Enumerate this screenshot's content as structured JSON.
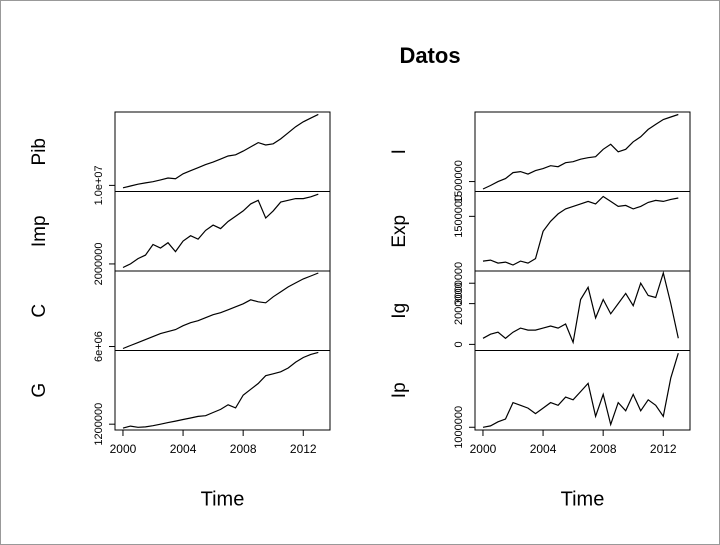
{
  "chart_data": {
    "type": "line",
    "title": "Datos",
    "x_label": "Time",
    "x": [
      2000,
      2000.5,
      2001,
      2001.5,
      2002,
      2002.5,
      2003,
      2003.5,
      2004,
      2004.5,
      2005,
      2005.5,
      2006,
      2006.5,
      2007,
      2007.5,
      2008,
      2008.5,
      2009,
      2009.5,
      2010,
      2010.5,
      2011,
      2011.5,
      2012,
      2012.5,
      2013
    ],
    "xlim": [
      1999.47,
      2013.78
    ],
    "xticks": [
      2000,
      2004,
      2008,
      2012
    ],
    "series": [
      {
        "name": "Pib",
        "color": "#000000",
        "ylim": [
          9000000,
          22000000
        ],
        "yticks": [
          {
            "value": 10000000,
            "label": "1.0e+07"
          }
        ],
        "values": [
          9600000,
          9900000,
          10200000,
          10400000,
          10600000,
          10900000,
          11200000,
          11100000,
          11900000,
          12400000,
          12900000,
          13400000,
          13800000,
          14300000,
          14800000,
          15000000,
          15600000,
          16300000,
          17000000,
          16600000,
          16800000,
          17600000,
          18600000,
          19600000,
          20400000,
          21000000,
          21600000
        ]
      },
      {
        "name": "Imp",
        "color": "#000000",
        "ylim": [
          1600000,
          6100000
        ],
        "yticks": [
          2000000
        ],
        "values": [
          1800000,
          2000000,
          2300000,
          2500000,
          3100000,
          2900000,
          3200000,
          2700000,
          3300000,
          3600000,
          3400000,
          3900000,
          4200000,
          4000000,
          4400000,
          4700000,
          5000000,
          5400000,
          5600000,
          4600000,
          5000000,
          5500000,
          5600000,
          5700000,
          5700000,
          5800000,
          5950000
        ]
      },
      {
        "name": "C",
        "color": "#000000",
        "ylim": [
          5600000,
          13600000
        ],
        "yticks": [
          {
            "value": 6000000,
            "label": "6e+06"
          }
        ],
        "values": [
          5800000,
          6100000,
          6400000,
          6700000,
          7000000,
          7300000,
          7500000,
          7700000,
          8100000,
          8400000,
          8600000,
          8900000,
          9200000,
          9400000,
          9700000,
          10000000,
          10300000,
          10700000,
          10500000,
          10400000,
          11000000,
          11500000,
          12000000,
          12400000,
          12800000,
          13100000,
          13400000
        ]
      },
      {
        "name": "G",
        "color": "#000000",
        "ylim": [
          1050000,
          3100000
        ],
        "yticks": [
          1200000
        ],
        "values": [
          1100000,
          1150000,
          1120000,
          1130000,
          1160000,
          1200000,
          1240000,
          1280000,
          1320000,
          1360000,
          1400000,
          1420000,
          1500000,
          1580000,
          1700000,
          1620000,
          1950000,
          2100000,
          2250000,
          2450000,
          2500000,
          2550000,
          2650000,
          2800000,
          2920000,
          3000000,
          3050000
        ]
      },
      {
        "name": "I",
        "color": "#000000",
        "ylim": [
          1300000,
          2900000
        ],
        "yticks": [
          1500000
        ],
        "values": [
          1350000,
          1420000,
          1500000,
          1560000,
          1680000,
          1700000,
          1650000,
          1720000,
          1760000,
          1820000,
          1800000,
          1880000,
          1900000,
          1950000,
          1980000,
          2000000,
          2150000,
          2250000,
          2100000,
          2150000,
          2300000,
          2400000,
          2550000,
          2650000,
          2750000,
          2800000,
          2850000
        ]
      },
      {
        "name": "Exp",
        "color": "#000000",
        "ylim": [
          400000,
          2000000
        ],
        "yticks": [
          1500000
        ],
        "values": [
          600000,
          620000,
          560000,
          580000,
          520000,
          600000,
          560000,
          650000,
          1200000,
          1400000,
          1550000,
          1650000,
          1700000,
          1750000,
          1800000,
          1750000,
          1900000,
          1800000,
          1700000,
          1720000,
          1650000,
          1700000,
          1780000,
          1820000,
          1800000,
          1840000,
          1870000
        ]
      },
      {
        "name": "Ig",
        "color": "#000000",
        "ylim": [
          -300000,
          3600000
        ],
        "yticks": [
          0,
          2000000,
          3000000
        ],
        "values": [
          300000,
          500000,
          600000,
          300000,
          600000,
          800000,
          700000,
          700000,
          800000,
          900000,
          800000,
          1000000,
          100000,
          2200000,
          2800000,
          1300000,
          2200000,
          1500000,
          2000000,
          2500000,
          1900000,
          3000000,
          2400000,
          2300000,
          3500000,
          2000000,
          300000
        ]
      },
      {
        "name": "Ip",
        "color": "#000000",
        "ylim": [
          900000,
          3800000
        ],
        "yticks": [
          1000000
        ],
        "values": [
          1000000,
          1050000,
          1200000,
          1300000,
          1900000,
          1800000,
          1700000,
          1500000,
          1700000,
          1900000,
          1800000,
          2100000,
          2000000,
          2300000,
          2600000,
          1400000,
          2200000,
          1100000,
          1900000,
          1600000,
          2200000,
          1600000,
          2000000,
          1800000,
          1400000,
          2800000,
          3700000
        ]
      }
    ]
  }
}
